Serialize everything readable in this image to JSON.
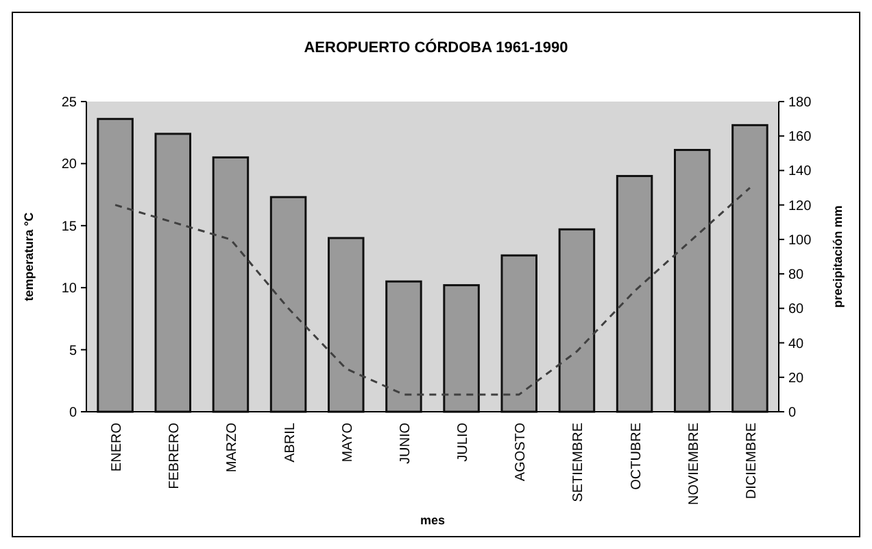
{
  "chart_data": {
    "type": "bar",
    "title": "AEROPUERTO CÓRDOBA 1961-1990",
    "xlabel": "mes",
    "ylabel": "temperatura °C",
    "y2label": "precipitación mm",
    "categories": [
      "ENERO",
      "FEBRERO",
      "MARZO",
      "ABRIL",
      "MAYO",
      "JUNIO",
      "JULIO",
      "AGOSTO",
      "SETIEMBRE",
      "OCTUBRE",
      "NOVIEMBRE",
      "DICIEMBRE"
    ],
    "series": [
      {
        "color": "#9a9a9a",
        "values": [
          23.6,
          22.4,
          20.5,
          17.3,
          14.0,
          10.5,
          10.2,
          12.6,
          14.7,
          19.0,
          21.1,
          23.1
        ]
      },
      {
        "type": "line",
        "axis": "y2",
        "color": "#404040",
        "line_style": "dashed",
        "marker": "none",
        "values": [
          120,
          110,
          100,
          60,
          25,
          10,
          10,
          10,
          35,
          70,
          100,
          130
        ]
      }
    ],
    "ylim": [
      0,
      25
    ],
    "yticks": [
      0,
      5,
      10,
      15,
      20,
      25
    ],
    "y2lim": [
      0,
      180
    ],
    "y2ticks": [
      0,
      20,
      40,
      60,
      80,
      100,
      120,
      140,
      160,
      180
    ],
    "grid": false
  }
}
